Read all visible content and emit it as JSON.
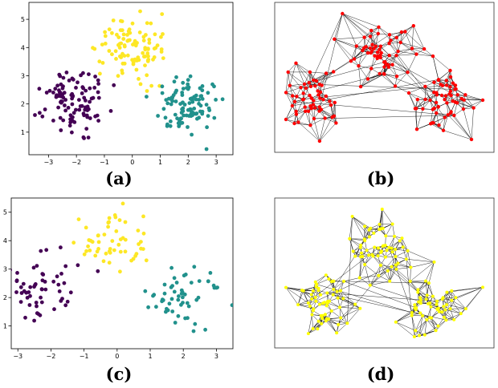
{
  "captions": {
    "a": "(a)",
    "b": "(b)",
    "c": "(c)",
    "d": "(d)"
  },
  "colors": {
    "purple": "#440154",
    "teal": "#21918c",
    "yellow": "#fde725",
    "graph_red": "#ff0000",
    "graph_yellow": "#ffff00",
    "edge": "#000000"
  },
  "chart_data": [
    {
      "id": "a",
      "type": "scatter",
      "title": "",
      "xlabel": "",
      "ylabel": "",
      "xlim": [
        -3.7,
        3.6
      ],
      "ylim": [
        0.2,
        5.6
      ],
      "xticks": [
        -3,
        -2,
        -1,
        0,
        1,
        2,
        3
      ],
      "yticks": [
        1,
        2,
        3,
        4,
        5
      ],
      "grid": false,
      "series": [
        {
          "color": "purple",
          "center": [
            -2.05,
            2.1
          ],
          "spread": [
            0.55,
            0.55
          ],
          "count": 105
        },
        {
          "color": "yellow",
          "center": [
            0.0,
            3.9
          ],
          "spread": [
            0.6,
            0.55
          ],
          "count": 105
        },
        {
          "color": "teal",
          "center": [
            2.0,
            2.0
          ],
          "spread": [
            0.55,
            0.5
          ],
          "count": 105
        }
      ]
    },
    {
      "id": "b",
      "type": "graph",
      "node_color": "graph_red",
      "edge_color": "edge",
      "clusters": [
        {
          "center": [
            -2.05,
            2.1
          ],
          "spread": [
            0.55,
            0.55
          ],
          "count": 60
        },
        {
          "center": [
            0.0,
            3.9
          ],
          "spread": [
            0.6,
            0.55
          ],
          "count": 60
        },
        {
          "center": [
            2.0,
            2.0
          ],
          "spread": [
            0.55,
            0.5
          ],
          "count": 60
        }
      ],
      "k_neighbors": 6
    },
    {
      "id": "c",
      "type": "scatter",
      "title": "",
      "xlabel": "",
      "ylabel": "",
      "xlim": [
        -3.2,
        3.5
      ],
      "ylim": [
        0.2,
        5.5
      ],
      "xticks": [
        -3,
        -2,
        -1,
        0,
        1,
        2,
        3
      ],
      "yticks": [
        1,
        2,
        3,
        4,
        5
      ],
      "grid": false,
      "series": [
        {
          "color": "purple",
          "center": [
            -2.2,
            2.2
          ],
          "spread": [
            0.5,
            0.55
          ],
          "count": 55
        },
        {
          "color": "yellow",
          "center": [
            0.0,
            4.0
          ],
          "spread": [
            0.6,
            0.5
          ],
          "count": 55
        },
        {
          "color": "teal",
          "center": [
            2.0,
            2.0
          ],
          "spread": [
            0.55,
            0.45
          ],
          "count": 55
        }
      ]
    },
    {
      "id": "d",
      "type": "graph",
      "node_color": "graph_yellow",
      "edge_color": "edge",
      "clusters": [
        {
          "center": [
            -2.1,
            2.2
          ],
          "spread": [
            0.5,
            0.5
          ],
          "count": 60
        },
        {
          "center": [
            0.0,
            3.9
          ],
          "spread": [
            0.6,
            0.55
          ],
          "count": 60
        },
        {
          "center": [
            2.0,
            2.0
          ],
          "spread": [
            0.55,
            0.5
          ],
          "count": 60
        }
      ],
      "k_neighbors": 6
    }
  ]
}
